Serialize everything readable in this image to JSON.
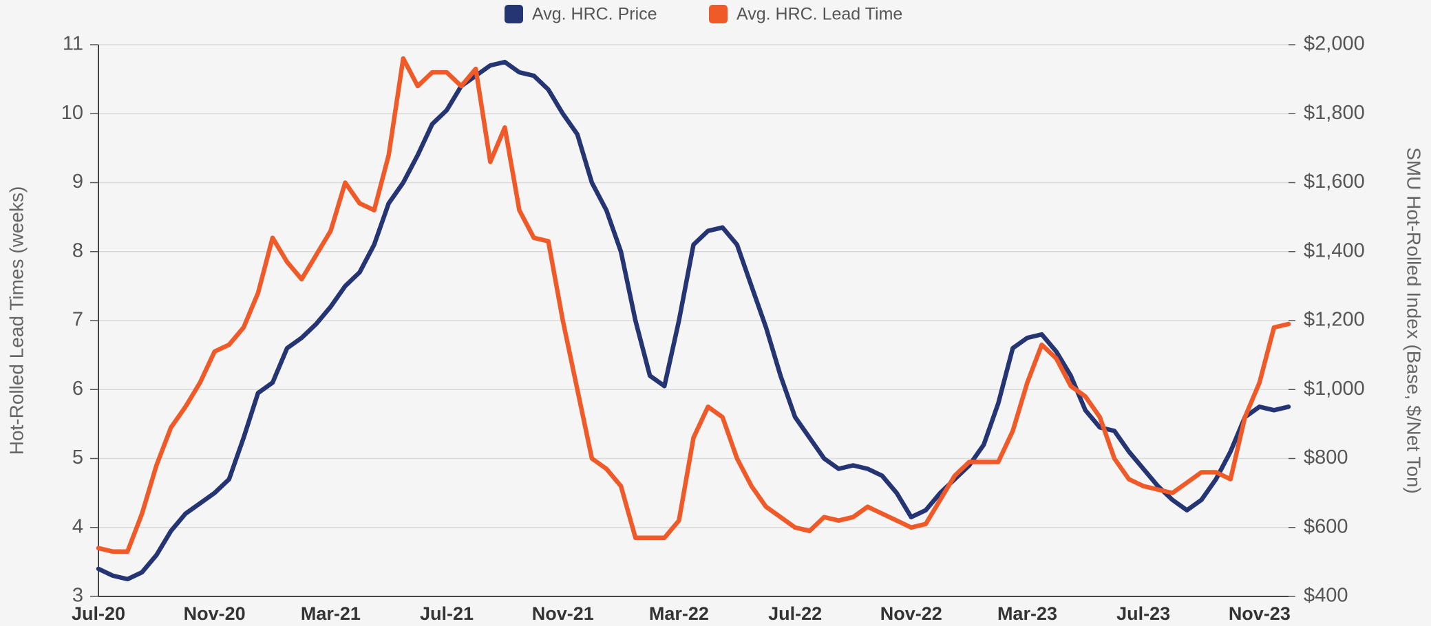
{
  "chart_data": {
    "type": "line",
    "categories": [
      "Jul-20",
      null,
      null,
      null,
      null,
      null,
      null,
      null,
      "Nov-20",
      null,
      null,
      null,
      null,
      null,
      null,
      null,
      "Mar-21",
      null,
      null,
      null,
      null,
      null,
      null,
      null,
      "Jul-21",
      null,
      null,
      null,
      null,
      null,
      null,
      null,
      "Nov-21",
      null,
      null,
      null,
      null,
      null,
      null,
      null,
      "Mar-22",
      null,
      null,
      null,
      null,
      null,
      null,
      null,
      "Jul-22",
      null,
      null,
      null,
      null,
      null,
      null,
      null,
      "Nov-22",
      null,
      null,
      null,
      null,
      null,
      null,
      null,
      "Mar-23",
      null,
      null,
      null,
      null,
      null,
      null,
      null,
      "Jul-23",
      null,
      null,
      null,
      null,
      null,
      null,
      null,
      "Nov-23",
      null,
      null
    ],
    "series": [
      {
        "name": "Avg. HRC. Price",
        "color": "#253574",
        "axis": "y2",
        "values": [
          480,
          460,
          450,
          470,
          520,
          590,
          640,
          670,
          700,
          740,
          860,
          990,
          1020,
          1120,
          1150,
          1190,
          1240,
          1300,
          1340,
          1420,
          1540,
          1600,
          1680,
          1770,
          1810,
          1880,
          1910,
          1940,
          1950,
          1920,
          1910,
          1870,
          1800,
          1740,
          1600,
          1520,
          1400,
          1200,
          1040,
          1010,
          1200,
          1420,
          1460,
          1470,
          1420,
          1300,
          1180,
          1040,
          920,
          860,
          800,
          770,
          780,
          770,
          750,
          700,
          630,
          650,
          700,
          740,
          780,
          840,
          960,
          1120,
          1150,
          1160,
          1110,
          1040,
          940,
          890,
          880,
          820,
          770,
          720,
          680,
          650,
          680,
          740,
          820,
          920,
          950,
          940,
          950
        ]
      },
      {
        "name": "Avg. HRC. Lead Time",
        "color": "#f05a28",
        "values": [
          3.7,
          3.65,
          3.65,
          4.2,
          4.9,
          5.45,
          5.75,
          6.1,
          6.55,
          6.65,
          6.9,
          7.4,
          8.2,
          7.85,
          7.6,
          7.95,
          8.3,
          9.0,
          8.7,
          8.6,
          9.4,
          10.8,
          10.4,
          10.6,
          10.6,
          10.4,
          10.65,
          9.3,
          9.8,
          8.6,
          8.2,
          8.15,
          7.0,
          6.0,
          5.0,
          4.85,
          4.6,
          3.85,
          3.85,
          3.85,
          4.1,
          5.3,
          5.75,
          5.6,
          5.0,
          4.6,
          4.3,
          4.15,
          4.0,
          3.95,
          4.15,
          4.1,
          4.15,
          4.3,
          4.2,
          4.1,
          4.0,
          4.05,
          4.4,
          4.75,
          4.95,
          4.95,
          4.95,
          5.4,
          6.1,
          6.65,
          6.45,
          6.05,
          5.9,
          5.6,
          5.0,
          4.7,
          4.6,
          4.55,
          4.5,
          4.65,
          4.8,
          4.8,
          4.7,
          5.6,
          6.1,
          6.9,
          6.95
        ]
      }
    ],
    "ylabel": "Hot-Rolled Lead Times (weeks)",
    "y2label": "SMU Hot-Rolled Index (Base, $/Net Ton)",
    "ylim": [
      3,
      11
    ],
    "yticks": [
      3,
      4,
      5,
      6,
      7,
      8,
      9,
      10,
      11
    ],
    "y2lim": [
      400,
      2000
    ],
    "y2ticks": [
      {
        "value": 400,
        "label": "$400"
      },
      {
        "value": 600,
        "label": "$600"
      },
      {
        "value": 800,
        "label": "$800"
      },
      {
        "value": 1000,
        "label": "$1,000"
      },
      {
        "value": 1200,
        "label": "$1,200"
      },
      {
        "value": 1400,
        "label": "$1,400"
      },
      {
        "value": 1600,
        "label": "$1,600"
      },
      {
        "value": 1800,
        "label": "$1,800"
      },
      {
        "value": 2000,
        "label": "$2,000"
      }
    ],
    "grid": true,
    "legend": "top"
  }
}
